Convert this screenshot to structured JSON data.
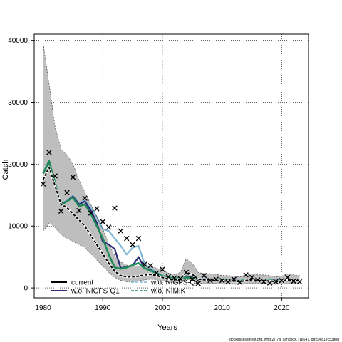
{
  "chart_data": {
    "type": "line",
    "title": "",
    "xlabel": "Years",
    "ylabel": "Catch",
    "xlim": [
      1978.5,
      2024.5
    ],
    "ylim": [
      -1600,
      41000
    ],
    "xticks": [
      1980,
      1990,
      2000,
      2010,
      2020
    ],
    "yticks": [
      0,
      10000,
      20000,
      30000,
      40000
    ],
    "grid": true,
    "legend_position": "bottom-left",
    "legend": {
      "entries": [
        "current",
        "w.o. NIGFS-Q1",
        "w.o. NIGFS-Q4",
        "w.o. NIMIK"
      ]
    },
    "footer": "stockassessment.org, whg.27.7a_sandbox, r18647, git:c9c81ec53a0d",
    "colors": {
      "current": "#000000",
      "ribbon": "#bebebe",
      "nigfs_q1": "#2c2a78",
      "nigfs_q4": "#7fb6d6",
      "nimik": "#1f8a58",
      "observed": "#000000"
    },
    "series": [
      {
        "name": "current",
        "x": [
          1980,
          1981,
          1982,
          1983,
          1984,
          1985,
          1986,
          1987,
          1988,
          1989,
          1990,
          1991,
          1992,
          1993,
          1994,
          1995,
          1996,
          1997,
          1998,
          1999,
          2000,
          2001,
          2002,
          2003,
          2004,
          2005,
          2006,
          2007,
          2008,
          2009,
          2010,
          2011,
          2012,
          2013,
          2014,
          2015,
          2016,
          2017,
          2018,
          2019,
          2020,
          2021,
          2022,
          2023
        ],
        "y": [
          17500,
          19500,
          16500,
          13500,
          13000,
          12000,
          11000,
          10000,
          8500,
          7000,
          5500,
          4000,
          2700,
          2000,
          1800,
          1800,
          1900,
          2100,
          2200,
          2000,
          1700,
          1400,
          1300,
          1400,
          2500,
          2200,
          1400,
          1300,
          1300,
          1200,
          1100,
          1100,
          1100,
          1000,
          1200,
          1300,
          1200,
          1200,
          1100,
          1000,
          1100,
          1300,
          1200,
          1200
        ]
      },
      {
        "name": "current-upper",
        "x": [
          1980,
          1981,
          1982,
          1983,
          1984,
          1985,
          1986,
          1987,
          1988,
          1989,
          1990,
          1991,
          1992,
          1993,
          1994,
          1995,
          1996,
          1997,
          1998,
          1999,
          2000,
          2001,
          2002,
          2003,
          2004,
          2005,
          2006,
          2007,
          2008,
          2009,
          2010,
          2011,
          2012,
          2013,
          2014,
          2015,
          2016,
          2017,
          2018,
          2019,
          2020,
          2021,
          2022,
          2023
        ],
        "y": [
          39500,
          33000,
          26000,
          22500,
          21500,
          20000,
          17500,
          15500,
          13500,
          11500,
          9500,
          7200,
          5200,
          4200,
          3700,
          3500,
          3500,
          3600,
          3500,
          3200,
          2800,
          2400,
          2200,
          2500,
          4700,
          4000,
          2500,
          2300,
          2300,
          2200,
          2000,
          2000,
          1900,
          1800,
          2100,
          2300,
          2100,
          2100,
          2000,
          1800,
          1900,
          2300,
          2100,
          2000
        ]
      },
      {
        "name": "current-lower",
        "x": [
          1980,
          1981,
          1982,
          1983,
          1984,
          1985,
          1986,
          1987,
          1988,
          1989,
          1990,
          1991,
          1992,
          1993,
          1994,
          1995,
          1996,
          1997,
          1998,
          1999,
          2000,
          2001,
          2002,
          2003,
          2004,
          2005,
          2006,
          2007,
          2008,
          2009,
          2010,
          2011,
          2012,
          2013,
          2014,
          2015,
          2016,
          2017,
          2018,
          2019,
          2020,
          2021,
          2022,
          2023
        ],
        "y": [
          9200,
          10500,
          9800,
          8600,
          8000,
          7500,
          7000,
          6500,
          5500,
          4500,
          3500,
          2500,
          1700,
          1200,
          1000,
          1000,
          1100,
          1300,
          1400,
          1300,
          1100,
          900,
          800,
          800,
          1400,
          1200,
          800,
          700,
          700,
          700,
          600,
          600,
          600,
          600,
          700,
          700,
          700,
          700,
          600,
          600,
          600,
          700,
          700,
          700
        ]
      },
      {
        "name": "w.o. NIGFS-Q1",
        "x": [
          1980,
          1981,
          1982,
          1983,
          1984,
          1985,
          1986,
          1987,
          1988,
          1989,
          1990,
          1991,
          1992,
          1993,
          1994,
          1995,
          1996,
          1997,
          1998,
          1999,
          2000,
          2001,
          2002,
          2003,
          2004,
          2005,
          2006,
          2007,
          2008,
          2009,
          2010,
          2011,
          2012,
          2013,
          2014,
          2015,
          2016,
          2017,
          2018,
          2019,
          2020,
          2021,
          2022,
          2023
        ],
        "y": [
          18500,
          20400,
          16800,
          13600,
          14000,
          14800,
          13500,
          14000,
          12500,
          10500,
          7500,
          7000,
          6300,
          3200,
          3400,
          3600,
          5000,
          3200,
          2900,
          2400,
          1900,
          1700,
          1500,
          1600,
          1900,
          1700,
          1400,
          1300,
          1300,
          1300,
          1200,
          1200,
          1200,
          1100,
          1300,
          1400,
          1300,
          1300,
          1200,
          1200,
          1200,
          1300,
          1300,
          1300
        ]
      },
      {
        "name": "w.o. NIGFS-Q4",
        "x": [
          1980,
          1981,
          1982,
          1983,
          1984,
          1985,
          1986,
          1987,
          1988,
          1989,
          1990,
          1991,
          1992,
          1993,
          1994,
          1995,
          1996,
          1997,
          1998,
          1999,
          2000,
          2001,
          2002,
          2003,
          2004,
          2005,
          2006,
          2007,
          2008,
          2009,
          2010,
          2011,
          2012,
          2013,
          2014,
          2015,
          2016,
          2017,
          2018,
          2019,
          2020,
          2021,
          2022,
          2023
        ],
        "y": [
          18500,
          20300,
          16900,
          13700,
          14100,
          14900,
          13600,
          14100,
          12900,
          11500,
          9500,
          9200,
          8000,
          6800,
          5400,
          6500,
          6800,
          3900,
          3100,
          2500,
          2000,
          1800,
          1600,
          1600,
          1800,
          1800,
          1500,
          1400,
          1400,
          1300,
          1300,
          1200,
          1200,
          1200,
          1300,
          1400,
          1400,
          1300,
          1300,
          1200,
          1300,
          1300,
          1300,
          1300
        ]
      },
      {
        "name": "w.o. NIMIK",
        "x": [
          1980,
          1981,
          1982,
          1983,
          1984,
          1985,
          1986,
          1987,
          1988,
          1989,
          1990,
          1991,
          1992,
          1993,
          1994,
          1995,
          1996,
          1997,
          1998,
          1999,
          2000,
          2001,
          2002,
          2003,
          2004,
          2005,
          2006,
          2007,
          2008,
          2009,
          2010,
          2011,
          2012,
          2013,
          2014,
          2015,
          2016,
          2017,
          2018,
          2019,
          2020,
          2021,
          2022,
          2023
        ],
        "y": [
          18500,
          20500,
          17000,
          13400,
          14000,
          14600,
          13200,
          13500,
          12000,
          10000,
          8000,
          5400,
          3300,
          3100,
          3300,
          3700,
          4000,
          3200,
          2800,
          2400,
          1900,
          1700,
          1500,
          1500,
          1700,
          1600,
          1400,
          1300,
          1300,
          1300,
          1200,
          1200,
          1100,
          1100,
          1300,
          1300,
          1300,
          1300,
          1200,
          1100,
          1200,
          1300,
          1300,
          1200
        ]
      },
      {
        "name": "observed",
        "type": "scatter",
        "x": [
          1980,
          1981,
          1982,
          1983,
          1984,
          1985,
          1986,
          1987,
          1988,
          1989,
          1990,
          1991,
          1992,
          1993,
          1994,
          1995,
          1996,
          1997,
          1998,
          1999,
          2000,
          2001,
          2002,
          2003,
          2004,
          2005,
          2006,
          2007,
          2008,
          2009,
          2010,
          2011,
          2012,
          2013,
          2014,
          2015,
          2016,
          2017,
          2018,
          2019,
          2020,
          2021,
          2022,
          2023
        ],
        "y": [
          16800,
          21900,
          18100,
          12400,
          15400,
          17900,
          12500,
          14500,
          12100,
          12800,
          10700,
          9800,
          12900,
          9200,
          8000,
          7000,
          8000,
          3800,
          3600,
          2400,
          3000,
          1800,
          1600,
          1500,
          2500,
          1400,
          700,
          2000,
          1200,
          1400,
          1200,
          1000,
          1400,
          900,
          2100,
          1700,
          1300,
          1000,
          800,
          1000,
          1200,
          1700,
          1100,
          1000
        ]
      }
    ]
  }
}
